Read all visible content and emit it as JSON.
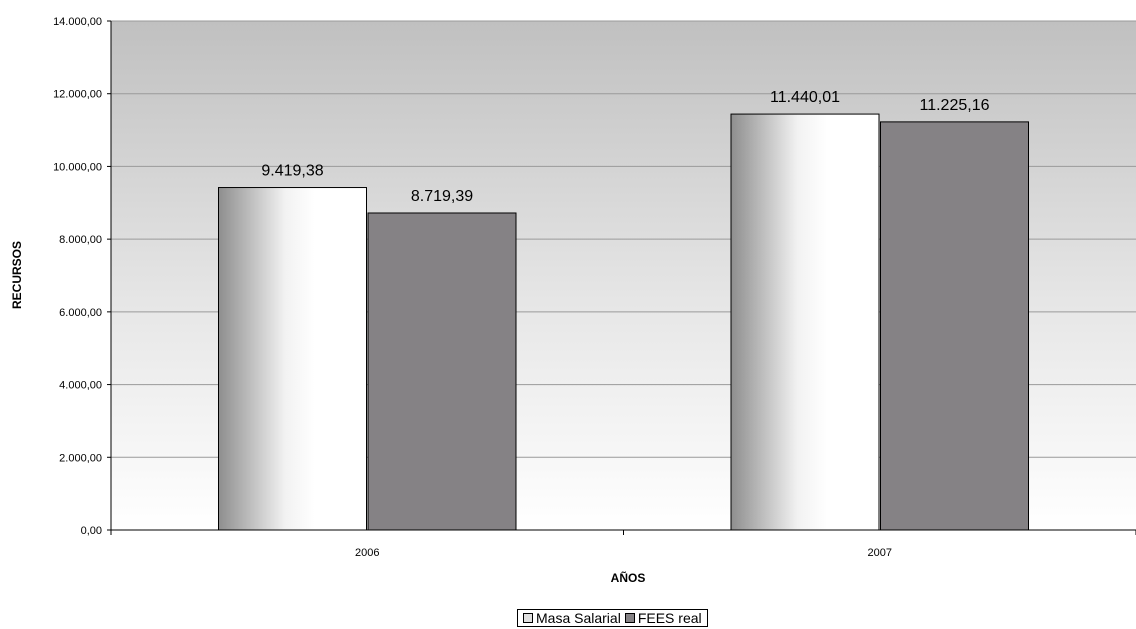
{
  "chart_data": {
    "type": "bar",
    "categories": [
      "2006",
      "2007"
    ],
    "series": [
      {
        "name": "Masa Salarial",
        "values": [
          9419.38,
          11440.01
        ],
        "labels": [
          "9.419,38",
          "11.440,01"
        ],
        "color": "#e8e8e8"
      },
      {
        "name": "FEES real",
        "values": [
          8719.39,
          11225.16
        ],
        "labels": [
          "8.719,39",
          "11.225,16"
        ],
        "color": "#858285"
      }
    ],
    "xlabel": "AÑOS",
    "ylabel": "RECURSOS",
    "ylim": [
      0,
      14000
    ],
    "yticks": [
      0,
      2000,
      4000,
      6000,
      8000,
      10000,
      12000,
      14000
    ],
    "ytick_labels": [
      "0,00",
      "2.000,00",
      "4.000,00",
      "6.000,00",
      "8.000,00",
      "10.000,00",
      "12.000,00",
      "14.000,00"
    ],
    "grid": true,
    "legend_position": "bottom",
    "plot_background": "#c0c0c0"
  }
}
